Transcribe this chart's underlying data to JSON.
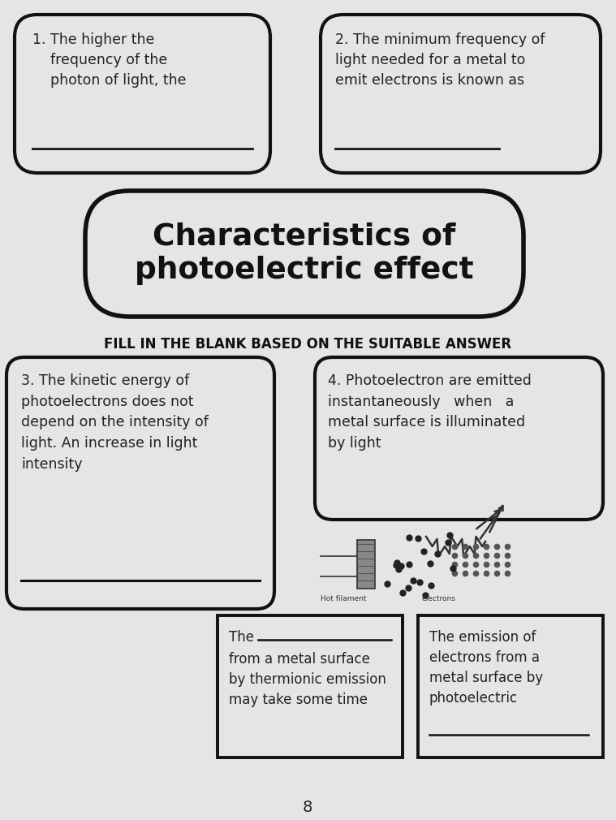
{
  "bg_color": "#c8c8c8",
  "page_bg": "#e8e8e8",
  "title_line1": "Characteristics of",
  "title_line2": "photoelectric effect",
  "subtitle": "FILL IN THE BLANK BASED ON THE SUITABLE ANSWER",
  "box1_text": "1. The higher the\n    frequency of the\n    photon of light, the",
  "box2_text": "2. The minimum frequency of\nlight needed for a metal to\nemit electrons is known as",
  "box3_text": "3. The kinetic energy of\nphotoelectrons does not\ndepend on the intensity of\nlight. An increase in light\nintensity",
  "box4_text": "4. Photoelectron are emitted\ninstantaneously   when   a\nmetal surface is illuminated\nby light",
  "box5_line1": "The",
  "box5_rest": "from a metal surface\nby thermionic emission\nmay take some time",
  "box6_text": "The emission of\nelectrons from a\nmetal surface by\nphotoelectric",
  "page_number": "8",
  "label_hot_filament": "Hot filament",
  "label_electrons": "electrons"
}
